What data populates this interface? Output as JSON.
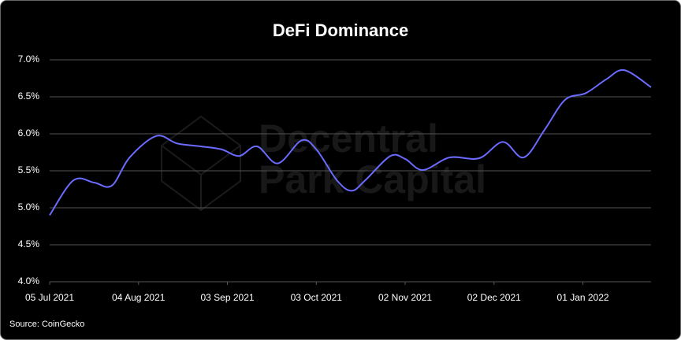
{
  "chart_data": {
    "type": "line",
    "title": "DeFi Dominance",
    "source": "Source: CoinGecko",
    "watermark": [
      "Decentral",
      "Park Capital"
    ],
    "x": [
      "2021-07-05",
      "2021-07-13",
      "2021-07-20",
      "2021-07-26",
      "2021-08-01",
      "2021-08-10",
      "2021-08-17",
      "2021-08-25",
      "2021-09-01",
      "2021-09-07",
      "2021-09-13",
      "2021-09-20",
      "2021-09-28",
      "2021-10-03",
      "2021-10-10",
      "2021-10-15",
      "2021-10-20",
      "2021-10-28",
      "2021-11-02",
      "2021-11-08",
      "2021-11-17",
      "2021-11-27",
      "2021-12-05",
      "2021-12-12",
      "2021-12-19",
      "2021-12-26",
      "2022-01-02",
      "2022-01-09",
      "2022-01-15",
      "2022-01-24"
    ],
    "values": [
      4.9,
      5.37,
      5.34,
      5.3,
      5.68,
      5.97,
      5.87,
      5.83,
      5.79,
      5.7,
      5.83,
      5.6,
      5.91,
      5.79,
      5.37,
      5.23,
      5.39,
      5.7,
      5.66,
      5.51,
      5.68,
      5.67,
      5.89,
      5.68,
      6.05,
      6.46,
      6.55,
      6.74,
      6.86,
      6.63
    ],
    "color": "#6b6bff",
    "xlim": [
      "2021-07-05",
      "2022-01-24"
    ],
    "xticks": [
      {
        "value": "2021-07-05",
        "label": "05 Jul 2021"
      },
      {
        "value": "2021-08-04",
        "label": "04 Aug 2021"
      },
      {
        "value": "2021-09-03",
        "label": "03 Sep 2021"
      },
      {
        "value": "2021-10-03",
        "label": "03 Oct 2021"
      },
      {
        "value": "2021-11-02",
        "label": "02 Nov 2021"
      },
      {
        "value": "2021-12-02",
        "label": "02 Dec 2021"
      },
      {
        "value": "2022-01-01",
        "label": "01 Jan 2022"
      }
    ],
    "ylim": [
      4,
      7
    ],
    "yticks": [
      {
        "value": 4,
        "label": "4.0%"
      },
      {
        "value": 4.5,
        "label": "4.5%"
      },
      {
        "value": 5,
        "label": "5.0%"
      },
      {
        "value": 5.5,
        "label": "5.5%"
      },
      {
        "value": 6,
        "label": "6.0%"
      },
      {
        "value": 6.5,
        "label": "6.5%"
      },
      {
        "value": 7,
        "label": "7.0%"
      }
    ],
    "grid": true
  }
}
